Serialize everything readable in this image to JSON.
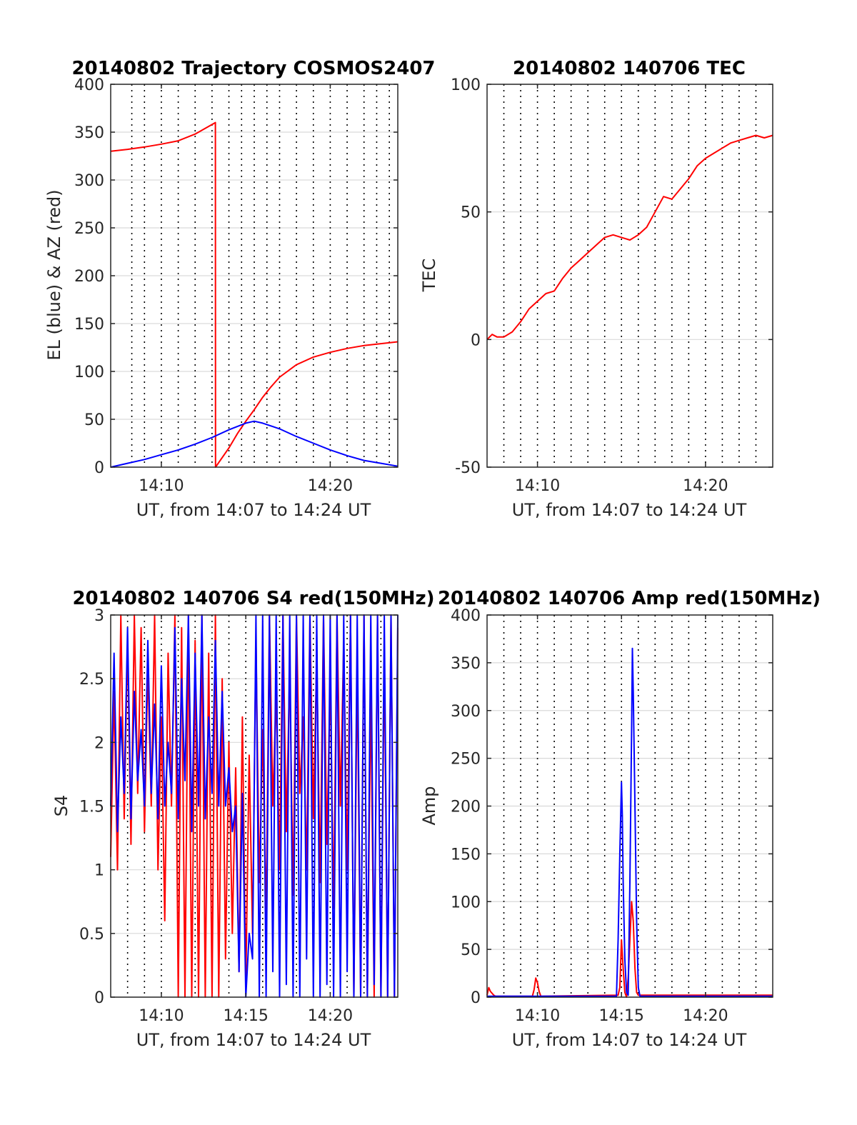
{
  "colors": {
    "red": "#ff0000",
    "blue": "#0000ff",
    "grid": "#d9d9d9",
    "dotted": "#000000",
    "axis": "#262626"
  },
  "chart_data": [
    {
      "type": "line",
      "title": "20140802 Trajectory COSMOS2407",
      "xlabel": "UT, from 14:07 to 14:24 UT",
      "ylabel": "EL (blue) & AZ (red)",
      "xlim": [
        7,
        24
      ],
      "ylim": [
        0,
        400
      ],
      "yticks": [
        0,
        50,
        100,
        150,
        200,
        250,
        300,
        350,
        400
      ],
      "xticks": [
        {
          "v": 10,
          "label": "14:10"
        },
        {
          "v": 20,
          "label": "14:20"
        }
      ],
      "dotted_x": [
        8.25,
        9,
        10,
        11,
        12,
        13,
        14,
        14.75,
        15.5,
        16.25,
        17,
        18,
        19,
        20,
        21,
        22,
        22.75,
        23.5
      ],
      "grid": true,
      "series": [
        {
          "color": "red",
          "x": [
            7,
            8,
            9,
            10,
            11,
            12,
            13.2,
            13.21,
            14,
            14.5,
            15,
            15.5,
            16,
            16.5,
            17,
            18,
            19,
            20,
            21,
            22,
            23,
            24
          ],
          "y": [
            330,
            332,
            334.5,
            337.5,
            341,
            348,
            360,
            0,
            20,
            35,
            48,
            60,
            73,
            84,
            94,
            107,
            115,
            120,
            124,
            127,
            129,
            131
          ]
        },
        {
          "color": "blue",
          "x": [
            7,
            8,
            9,
            10,
            11,
            12,
            13,
            14,
            15,
            15.5,
            16,
            17,
            18,
            19,
            20,
            21,
            22,
            23,
            24
          ],
          "y": [
            0,
            4,
            8,
            13,
            18,
            24,
            31,
            39,
            46,
            48,
            46,
            40,
            32,
            25,
            18,
            12,
            7,
            4,
            1
          ]
        }
      ]
    },
    {
      "type": "line",
      "title": "20140802 140706 TEC",
      "xlabel": "UT, from 14:07 to 14:24 UT",
      "ylabel": "TEC",
      "xlim": [
        7,
        24
      ],
      "ylim": [
        -50,
        100
      ],
      "yticks": [
        -50,
        0,
        50,
        100
      ],
      "xticks": [
        {
          "v": 10,
          "label": "14:10"
        },
        {
          "v": 20,
          "label": "14:20"
        }
      ],
      "dotted_x": [
        8,
        9,
        10,
        11,
        12,
        13,
        14,
        15,
        16,
        17,
        18,
        19,
        20,
        21,
        22,
        23
      ],
      "grid": true,
      "series": [
        {
          "color": "red",
          "x": [
            7,
            7.3,
            7.6,
            8,
            8.5,
            9,
            9.5,
            10,
            10.5,
            11,
            11.5,
            12,
            12.5,
            13,
            13.5,
            14,
            14.5,
            15,
            15.5,
            16,
            16.5,
            17,
            17.5,
            18,
            18.5,
            19,
            19.5,
            20,
            20.5,
            21,
            21.5,
            22,
            22.5,
            23,
            23.5,
            24
          ],
          "y": [
            0,
            2,
            1,
            1,
            3,
            7,
            12,
            15,
            18,
            19,
            24,
            28,
            31,
            34,
            37,
            40,
            41,
            40,
            39,
            41,
            44,
            50,
            56,
            55,
            59,
            63,
            68,
            71,
            73,
            75,
            77,
            78,
            79,
            80,
            79,
            80
          ]
        }
      ]
    },
    {
      "type": "line",
      "title": "20140802 140706 S4 red(150MHz)",
      "xlabel": "UT, from 14:07 to 14:24 UT",
      "ylabel": "S4",
      "xlim": [
        7,
        24
      ],
      "ylim": [
        0,
        3
      ],
      "yticks": [
        0,
        0.5,
        1,
        1.5,
        2,
        2.5,
        3
      ],
      "xticks": [
        {
          "v": 10,
          "label": "14:10"
        },
        {
          "v": 15,
          "label": "14:15"
        },
        {
          "v": 20,
          "label": "14:20"
        }
      ],
      "dotted_x": [
        8,
        9,
        10,
        11,
        12,
        13,
        14,
        15,
        16,
        17,
        18,
        19,
        20,
        21,
        22,
        23
      ],
      "grid": true,
      "series": [
        {
          "color": "red",
          "x": [
            7,
            7.2,
            7.4,
            7.6,
            7.8,
            8.0,
            8.2,
            8.4,
            8.6,
            8.8,
            9.0,
            9.2,
            9.4,
            9.6,
            9.8,
            10.0,
            10.2,
            10.4,
            10.6,
            10.8,
            11.0,
            11.2,
            11.4,
            11.6,
            11.8,
            12.0,
            12.2,
            12.4,
            12.6,
            12.8,
            13.0,
            13.2,
            13.4,
            13.6,
            13.8,
            14.0,
            14.2,
            14.4,
            14.6,
            14.8,
            15.0,
            15.2,
            15.4,
            15.6,
            15.8,
            16.0,
            16.2,
            16.4,
            16.6,
            16.8,
            17.0,
            17.2,
            17.4,
            17.6,
            17.8,
            18.0,
            18.2,
            18.4,
            18.6,
            18.8,
            19.0,
            19.2,
            19.4,
            19.6,
            19.8,
            20.0,
            20.2,
            20.4,
            20.6,
            20.8,
            21.0,
            21.2,
            21.4,
            21.6,
            21.8,
            22.0,
            22.2,
            22.4,
            22.6,
            22.8,
            23.0,
            23.2,
            23.4,
            23.6,
            23.8,
            24.0
          ],
          "y": [
            1.1,
            2.4,
            1.0,
            3.0,
            1.4,
            2.8,
            1.2,
            3.0,
            1.6,
            2.9,
            1.3,
            2.6,
            1.5,
            3.0,
            1.0,
            2.2,
            0.6,
            2.7,
            1.5,
            3.0,
            0.0,
            2.9,
            0.0,
            3.0,
            0.0,
            2.8,
            0.0,
            3.0,
            0.0,
            2.7,
            0.0,
            3.0,
            0.0,
            2.5,
            0.3,
            2.0,
            0.5,
            1.8,
            0.2,
            2.2,
            0.1,
            1.9,
            0.5,
            2.8,
            0.9,
            2.1,
            0.6,
            3.0,
            1.5,
            2.4,
            1.0,
            3.0,
            1.3,
            2.6,
            0.8,
            3.0,
            1.6,
            2.2,
            1.0,
            3.0,
            1.4,
            2.7,
            0.9,
            3.0,
            1.2,
            2.5,
            0.7,
            3.0,
            1.5,
            2.8,
            1.0,
            3.0,
            0.0,
            2.6,
            0.0,
            3.0,
            0.0,
            2.4,
            0.0,
            3.0,
            0.0,
            2.7,
            0.0,
            3.0,
            0.0,
            2.9
          ]
        },
        {
          "color": "blue",
          "x": [
            7,
            7.2,
            7.4,
            7.6,
            7.8,
            8.0,
            8.2,
            8.4,
            8.6,
            8.8,
            9.0,
            9.2,
            9.4,
            9.6,
            9.8,
            10.0,
            10.2,
            10.4,
            10.6,
            10.8,
            11.0,
            11.2,
            11.4,
            11.6,
            11.8,
            12.0,
            12.2,
            12.4,
            12.6,
            12.8,
            13.0,
            13.2,
            13.4,
            13.6,
            13.8,
            14.0,
            14.2,
            14.4,
            14.6,
            14.8,
            15.0,
            15.2,
            15.4,
            15.6,
            15.8,
            16.0,
            16.2,
            16.4,
            16.6,
            16.8,
            17.0,
            17.2,
            17.4,
            17.6,
            17.8,
            18.0,
            18.2,
            18.4,
            18.6,
            18.8,
            19.0,
            19.2,
            19.4,
            19.6,
            19.8,
            20.0,
            20.2,
            20.4,
            20.6,
            20.8,
            21.0,
            21.2,
            21.4,
            21.6,
            21.8,
            22.0,
            22.2,
            22.4,
            22.6,
            22.8,
            23.0,
            23.2,
            23.4,
            23.6,
            23.8,
            24.0
          ],
          "y": [
            1.5,
            2.7,
            1.3,
            2.2,
            1.6,
            2.9,
            1.4,
            2.4,
            1.7,
            2.1,
            1.5,
            2.8,
            1.6,
            2.3,
            1.4,
            2.6,
            1.5,
            2.0,
            1.6,
            2.9,
            1.4,
            2.5,
            1.7,
            3.0,
            1.3,
            2.7,
            1.5,
            3.0,
            1.4,
            2.2,
            1.6,
            2.8,
            1.5,
            2.4,
            1.5,
            1.8,
            1.3,
            1.5,
            0.2,
            1.6,
            0.0,
            0.5,
            0.3,
            3.0,
            0.0,
            3.0,
            0.0,
            3.0,
            0.2,
            3.0,
            0.0,
            3.0,
            0.1,
            3.0,
            0.0,
            3.0,
            0.0,
            3.0,
            0.3,
            3.0,
            0.0,
            3.0,
            0.0,
            3.0,
            0.1,
            3.0,
            0.0,
            3.0,
            0.0,
            3.0,
            0.2,
            3.0,
            0.0,
            3.0,
            0.0,
            3.0,
            0.0,
            3.0,
            0.1,
            3.0,
            0.0,
            3.0,
            0.0,
            3.0,
            0.0,
            3.0
          ]
        }
      ]
    },
    {
      "type": "line",
      "title": "20140802 140706 Amp red(150MHz)",
      "xlabel": "UT, from 14:07 to 14:24 UT",
      "ylabel": "Amp",
      "xlim": [
        7,
        24
      ],
      "ylim": [
        0,
        400
      ],
      "yticks": [
        0,
        50,
        100,
        150,
        200,
        250,
        300,
        350,
        400
      ],
      "xticks": [
        {
          "v": 10,
          "label": "14:10"
        },
        {
          "v": 15,
          "label": "14:15"
        },
        {
          "v": 20,
          "label": "14:20"
        }
      ],
      "dotted_x": [
        8,
        9,
        10,
        11,
        12,
        13,
        14,
        15,
        16,
        17,
        18,
        19,
        20,
        21,
        22,
        23
      ],
      "grid": true,
      "series": [
        {
          "color": "red",
          "x": [
            7,
            7.1,
            7.2,
            7.3,
            7.4,
            7.5,
            9.7,
            9.8,
            9.9,
            10.0,
            10.1,
            10.2,
            14.8,
            14.9,
            15.0,
            15.1,
            15.2,
            15.3,
            15.4,
            15.5,
            15.6,
            15.7,
            15.8,
            15.9,
            16.0,
            24
          ],
          "y": [
            2,
            10,
            6,
            4,
            2,
            1,
            1,
            8,
            20,
            15,
            6,
            1,
            2,
            10,
            60,
            30,
            5,
            0,
            20,
            60,
            100,
            80,
            30,
            5,
            2,
            2
          ]
        },
        {
          "color": "blue",
          "x": [
            7,
            14.7,
            14.8,
            14.9,
            15.0,
            15.05,
            15.1,
            15.2,
            15.3,
            15.4,
            15.5,
            15.6,
            15.65,
            15.7,
            15.8,
            15.9,
            16.0,
            16.1,
            24
          ],
          "y": [
            1,
            1,
            60,
            150,
            225,
            190,
            120,
            40,
            5,
            2,
            120,
            280,
            365,
            320,
            200,
            80,
            10,
            1,
            1
          ]
        }
      ]
    }
  ]
}
